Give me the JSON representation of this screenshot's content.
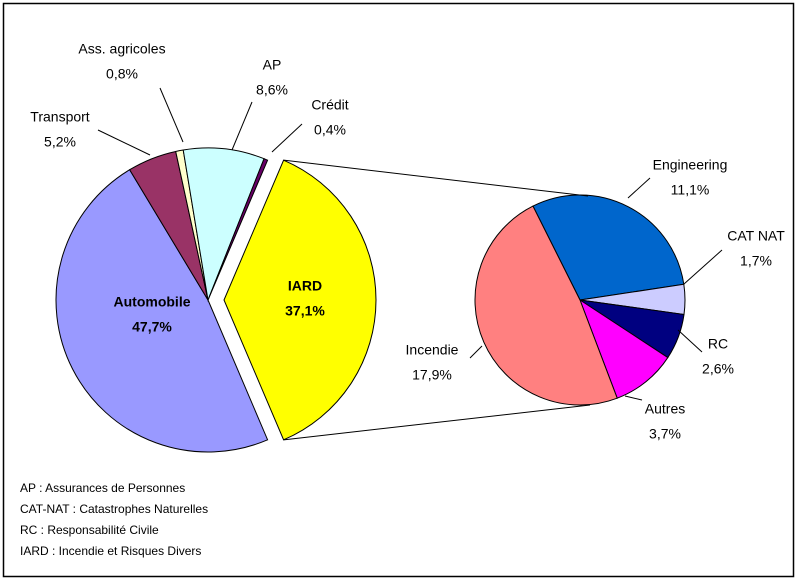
{
  "chart_data": [
    {
      "type": "pie",
      "categories": [
        "Automobile",
        "Transport",
        "Ass. agricoles",
        "AP",
        "Crédit",
        "IARD"
      ],
      "values": [
        47.7,
        5.2,
        0.8,
        8.6,
        0.4,
        37.1
      ],
      "value_labels": [
        "47,7%",
        "5,2%",
        "0,8%",
        "8,6%",
        "0,4%",
        "37,1%"
      ],
      "colors": [
        "#9999ff",
        "#993366",
        "#ffffcc",
        "#ccffff",
        "#660066",
        "#ffff00"
      ]
    },
    {
      "type": "pie",
      "categories": [
        "Engineering",
        "CAT NAT",
        "RC",
        "Autres",
        "Incendie"
      ],
      "values": [
        11.1,
        1.7,
        2.6,
        3.7,
        17.9
      ],
      "value_labels": [
        "11,1%",
        "1,7%",
        "2,6%",
        "3,7%",
        "17,9%"
      ],
      "colors": [
        "#0066cc",
        "#ccccff",
        "#000080",
        "#ff00ff",
        "#ff8080"
      ]
    }
  ],
  "notes": [
    "AP : Assurances de Personnes",
    "CAT-NAT : Catastrophes Naturelles",
    "RC : Responsabilité Civile",
    "IARD : Incendie et Risques Divers"
  ]
}
